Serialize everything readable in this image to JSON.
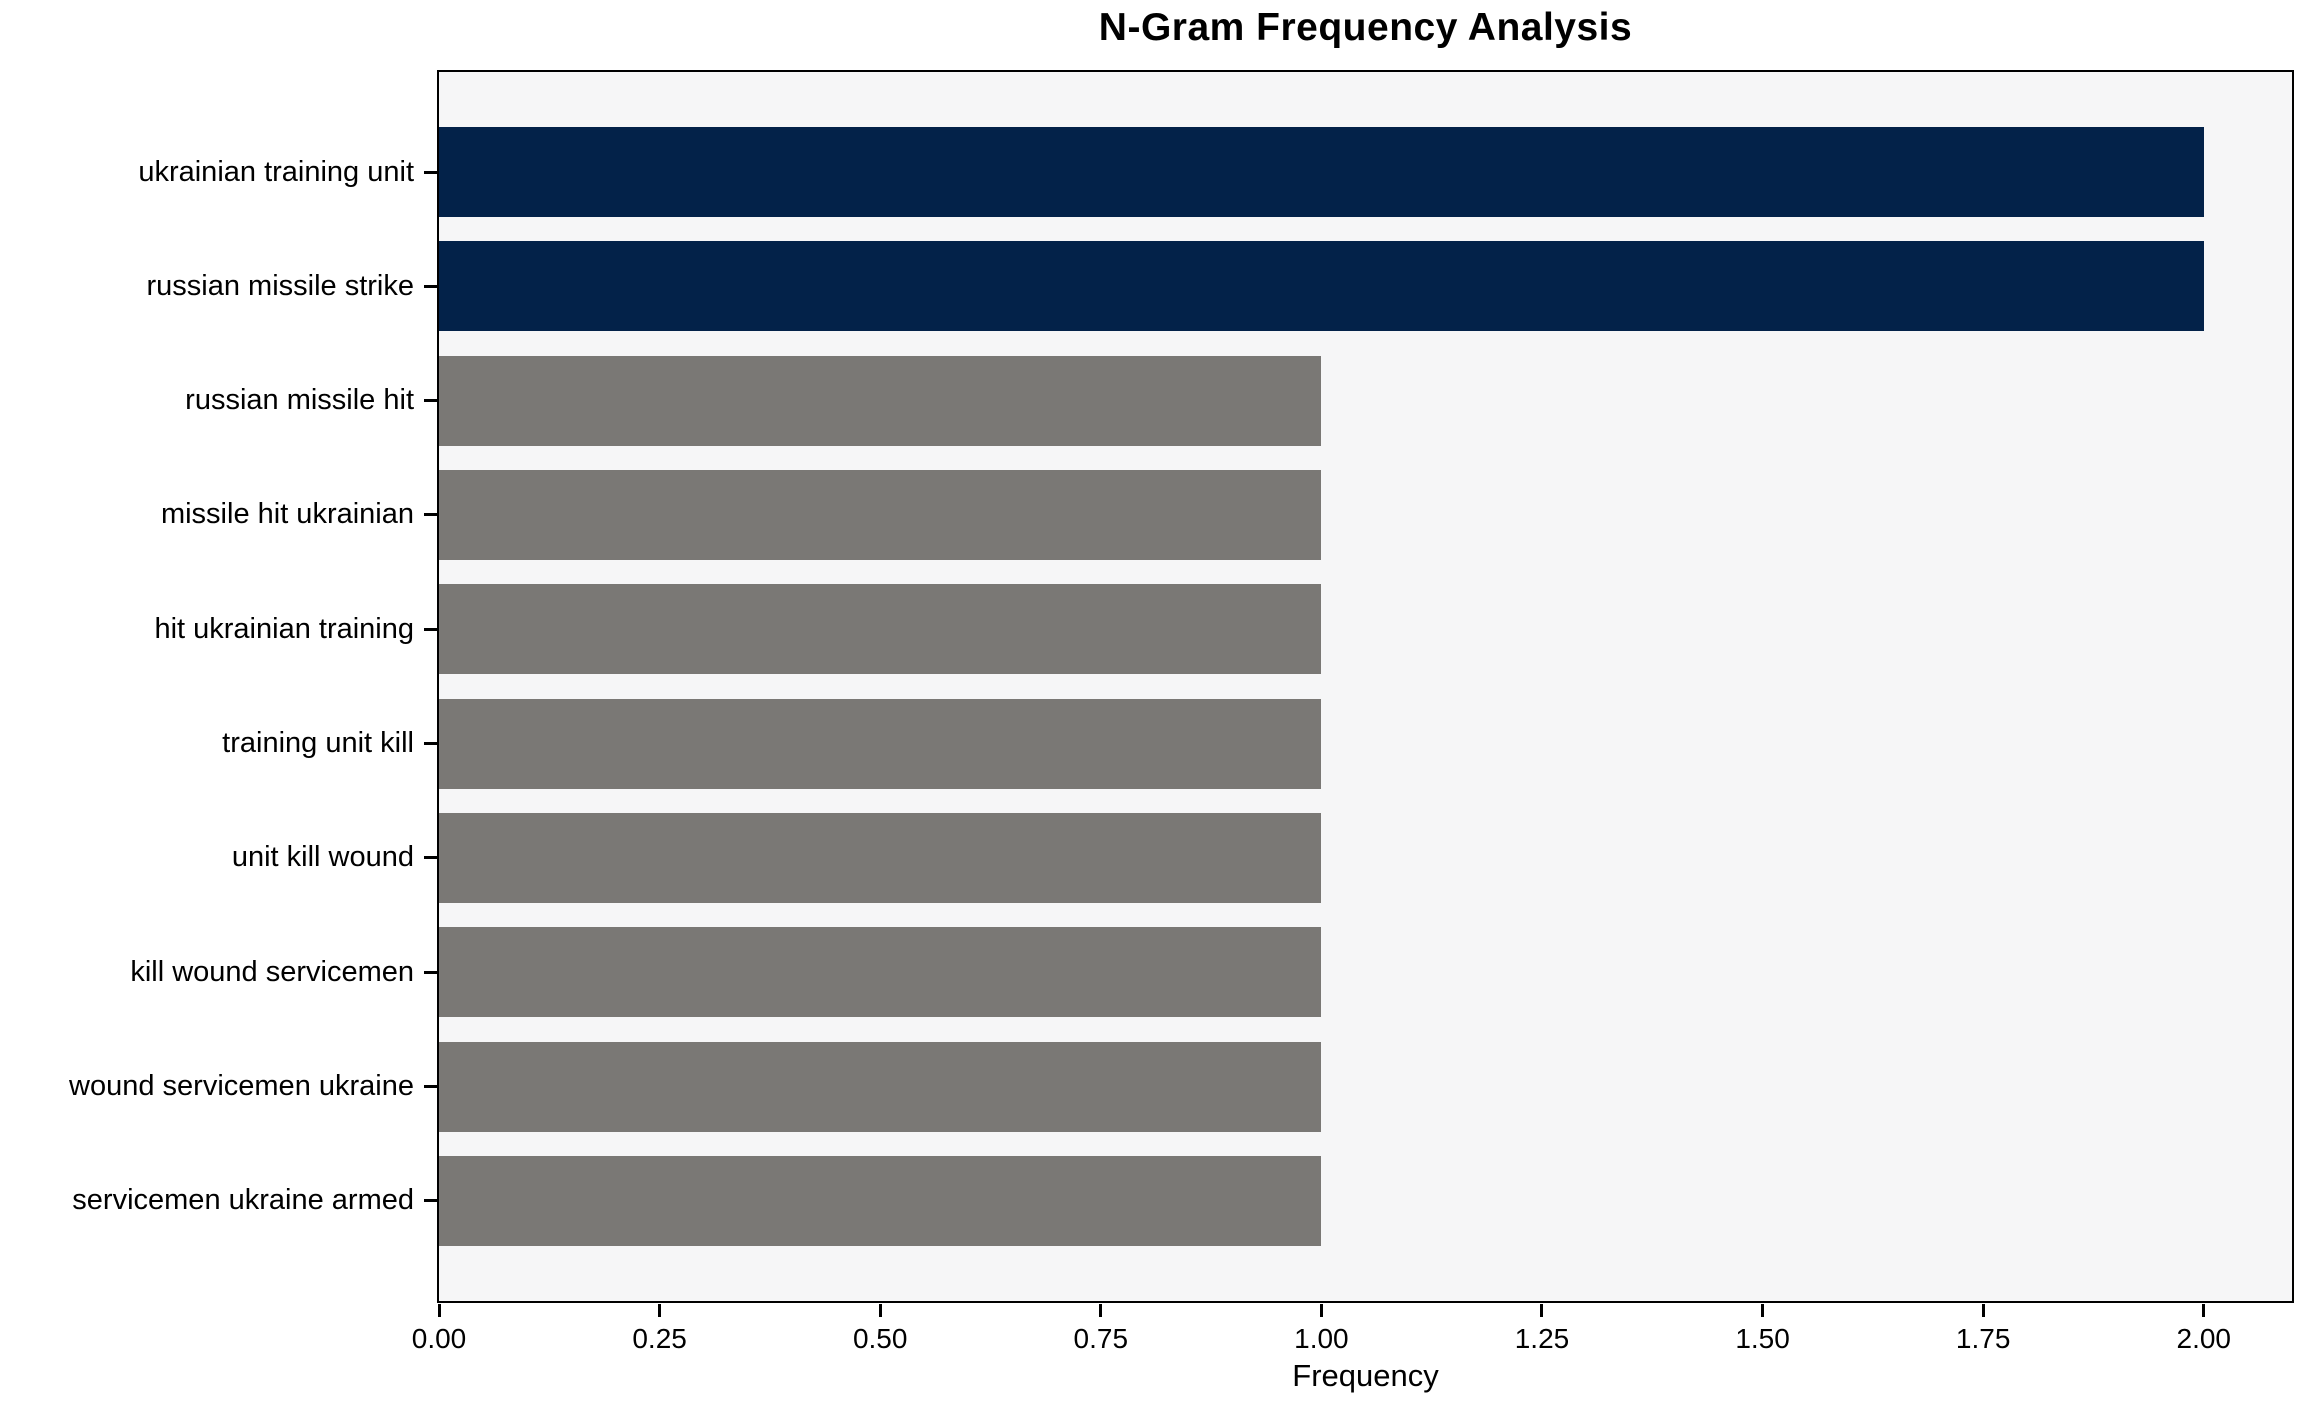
{
  "chart_data": {
    "type": "bar",
    "orientation": "horizontal",
    "title": "N-Gram Frequency Analysis",
    "xlabel": "Frequency",
    "ylabel": "",
    "categories": [
      "ukrainian training unit",
      "russian missile strike",
      "russian missile hit",
      "missile hit ukrainian",
      "hit ukrainian training",
      "training unit kill",
      "unit kill wound",
      "kill wound servicemen",
      "wound servicemen ukraine",
      "servicemen ukraine armed"
    ],
    "values": [
      2,
      2,
      1,
      1,
      1,
      1,
      1,
      1,
      1,
      1
    ],
    "bar_colors": [
      "#032249",
      "#032249",
      "#7a7875",
      "#7a7875",
      "#7a7875",
      "#7a7875",
      "#7a7875",
      "#7a7875",
      "#7a7875",
      "#7a7875"
    ],
    "xlim": [
      0,
      2.1
    ],
    "xticks": [
      {
        "value": 0.0,
        "label": "0.00"
      },
      {
        "value": 0.25,
        "label": "0.25"
      },
      {
        "value": 0.5,
        "label": "0.50"
      },
      {
        "value": 0.75,
        "label": "0.75"
      },
      {
        "value": 1.0,
        "label": "1.00"
      },
      {
        "value": 1.25,
        "label": "1.25"
      },
      {
        "value": 1.5,
        "label": "1.50"
      },
      {
        "value": 1.75,
        "label": "1.75"
      },
      {
        "value": 2.0,
        "label": "2.00"
      }
    ],
    "grid": false,
    "legend_position": "none",
    "colors": {
      "highlight_bar": "#032249",
      "default_bar": "#7a7875",
      "plot_background": "#f6f6f7",
      "figure_background": "#ffffff",
      "spine": "#000000",
      "text": "#000000"
    }
  }
}
